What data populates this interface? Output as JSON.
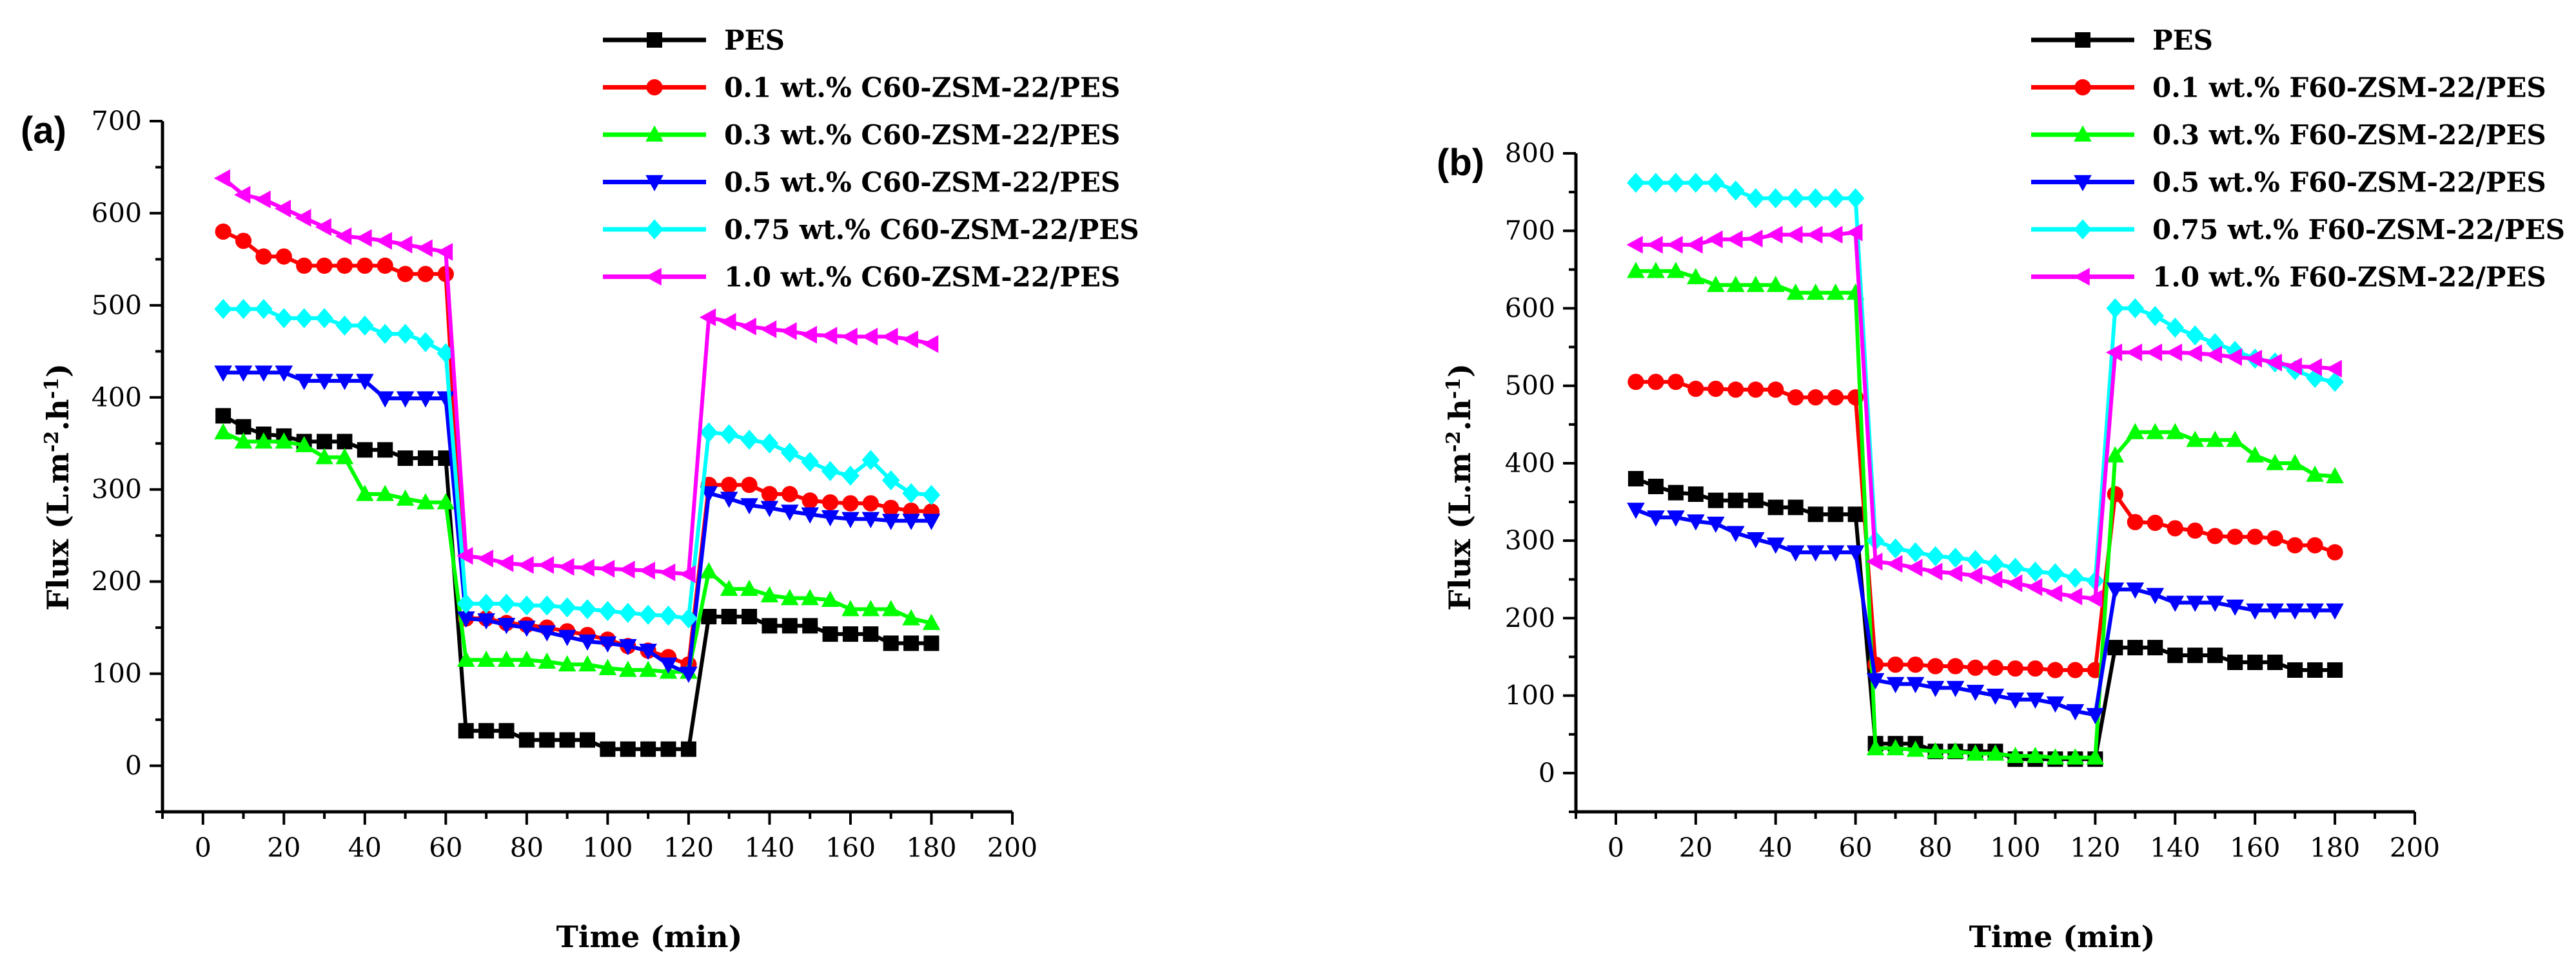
{
  "chart_data": [
    {
      "type": "line",
      "panel_label": "(a)",
      "xlabel": "Time (min)",
      "ylabel_main": "Flux (L.m",
      "ylabel_sup1": "-2",
      "ylabel_mid": ".h",
      "ylabel_sup2": "-1",
      "ylabel_end": ")",
      "xlim": [
        -10,
        200
      ],
      "ylim": [
        -50,
        700
      ],
      "xticks": [
        0,
        20,
        40,
        60,
        80,
        100,
        120,
        140,
        160,
        180,
        200
      ],
      "yticks": [
        0,
        100,
        200,
        300,
        400,
        500,
        600,
        700
      ],
      "x": [
        5,
        10,
        15,
        20,
        25,
        30,
        35,
        40,
        45,
        50,
        55,
        60,
        65,
        70,
        75,
        80,
        85,
        90,
        95,
        100,
        105,
        110,
        115,
        120,
        125,
        130,
        135,
        140,
        145,
        150,
        155,
        160,
        165,
        170,
        175,
        180
      ],
      "series": [
        {
          "name": "PES",
          "color": "#000000",
          "marker": "square",
          "values": [
            380,
            368,
            360,
            358,
            352,
            352,
            352,
            343,
            343,
            334,
            334,
            334,
            38,
            38,
            38,
            28,
            28,
            28,
            28,
            18,
            18,
            18,
            18,
            18,
            162,
            162,
            162,
            152,
            152,
            152,
            143,
            143,
            143,
            133,
            133,
            133
          ]
        },
        {
          "name": "0.1 wt.% C60-ZSM-22/PES",
          "color": "#ff0000",
          "marker": "circle",
          "values": [
            580,
            570,
            553,
            553,
            543,
            543,
            543,
            543,
            543,
            534,
            534,
            534,
            160,
            160,
            155,
            153,
            150,
            146,
            142,
            137,
            130,
            125,
            118,
            110,
            305,
            305,
            305,
            295,
            295,
            288,
            286,
            285,
            285,
            280,
            277,
            276
          ]
        },
        {
          "name": "0.3 wt.% C60-ZSM-22/PES",
          "color": "#00ff00",
          "marker": "triangle-up",
          "values": [
            362,
            352,
            352,
            352,
            348,
            335,
            335,
            295,
            295,
            290,
            286,
            286,
            115,
            115,
            115,
            115,
            113,
            110,
            110,
            106,
            104,
            104,
            102,
            102,
            211,
            192,
            192,
            185,
            182,
            182,
            180,
            170,
            170,
            170,
            160,
            155
          ]
        },
        {
          "name": "0.5 wt.% C60-ZSM-22/PES",
          "color": "#0000ff",
          "marker": "triangle-down",
          "values": [
            427,
            427,
            427,
            427,
            418,
            418,
            418,
            418,
            399,
            399,
            399,
            399,
            160,
            158,
            153,
            150,
            145,
            140,
            135,
            133,
            130,
            125,
            110,
            100,
            296,
            290,
            283,
            280,
            276,
            273,
            270,
            268,
            268,
            266,
            266,
            266
          ]
        },
        {
          "name": "0.75 wt.% C60-ZSM-22/PES",
          "color": "#00ffff",
          "marker": "diamond",
          "values": [
            496,
            496,
            496,
            486,
            486,
            486,
            478,
            478,
            469,
            469,
            460,
            448,
            176,
            176,
            176,
            174,
            174,
            172,
            170,
            168,
            166,
            164,
            163,
            160,
            362,
            360,
            354,
            350,
            340,
            330,
            320,
            315,
            332,
            310,
            296,
            294
          ]
        },
        {
          "name": "1.0 wt.% C60-ZSM-22/PES",
          "color": "#ff00ff",
          "marker": "triangle-left",
          "values": [
            638,
            620,
            615,
            605,
            595,
            585,
            575,
            573,
            570,
            566,
            562,
            558,
            228,
            225,
            220,
            218,
            218,
            216,
            215,
            214,
            213,
            212,
            210,
            208,
            487,
            482,
            477,
            474,
            472,
            468,
            467,
            466,
            466,
            466,
            463,
            458
          ]
        }
      ]
    },
    {
      "type": "line",
      "panel_label": "(b)",
      "xlabel": "Time (min)",
      "ylabel_main": "Flux (L.m",
      "ylabel_sup1": "-2",
      "ylabel_mid": ".h",
      "ylabel_sup2": "-1",
      "ylabel_end": ")",
      "xlim": [
        -10,
        200
      ],
      "ylim": [
        -50,
        800
      ],
      "xticks": [
        0,
        20,
        40,
        60,
        80,
        100,
        120,
        140,
        160,
        180,
        200
      ],
      "yticks": [
        0,
        100,
        200,
        300,
        400,
        500,
        600,
        700,
        800
      ],
      "x": [
        5,
        10,
        15,
        20,
        25,
        30,
        35,
        40,
        45,
        50,
        55,
        60,
        65,
        70,
        75,
        80,
        85,
        90,
        95,
        100,
        105,
        110,
        115,
        120,
        125,
        130,
        135,
        140,
        145,
        150,
        155,
        160,
        165,
        170,
        175,
        180
      ],
      "series": [
        {
          "name": "PES",
          "color": "#000000",
          "marker": "square",
          "values": [
            380,
            370,
            362,
            360,
            352,
            352,
            352,
            343,
            343,
            334,
            334,
            334,
            38,
            38,
            38,
            28,
            28,
            28,
            28,
            18,
            18,
            18,
            18,
            18,
            162,
            162,
            162,
            152,
            152,
            152,
            143,
            143,
            143,
            133,
            133,
            133
          ]
        },
        {
          "name": "0.1 wt.% F60-ZSM-22/PES",
          "color": "#ff0000",
          "marker": "circle",
          "values": [
            505,
            505,
            505,
            496,
            496,
            495,
            495,
            495,
            485,
            485,
            485,
            485,
            140,
            140,
            140,
            138,
            138,
            136,
            136,
            135,
            135,
            133,
            133,
            133,
            360,
            324,
            323,
            316,
            313,
            306,
            305,
            305,
            303,
            294,
            294,
            285
          ]
        },
        {
          "name": "0.3 wt.% F60-ZSM-22/PES",
          "color": "#00ff00",
          "marker": "triangle-up",
          "values": [
            648,
            648,
            648,
            640,
            630,
            630,
            630,
            630,
            620,
            620,
            620,
            620,
            32,
            32,
            30,
            28,
            28,
            25,
            25,
            22,
            22,
            20,
            20,
            20,
            410,
            440,
            440,
            440,
            430,
            430,
            430,
            410,
            400,
            400,
            385,
            383
          ]
        },
        {
          "name": "0.5 wt.% F60-ZSM-22/PES",
          "color": "#0000ff",
          "marker": "triangle-down",
          "values": [
            340,
            330,
            330,
            325,
            322,
            310,
            302,
            295,
            285,
            285,
            285,
            285,
            120,
            115,
            115,
            110,
            110,
            105,
            100,
            95,
            95,
            90,
            80,
            75,
            237,
            237,
            230,
            220,
            220,
            220,
            215,
            210,
            210,
            210,
            210,
            210
          ]
        },
        {
          "name": "0.75 wt.% F60-ZSM-22/PES",
          "color": "#00ffff",
          "marker": "diamond",
          "values": [
            762,
            762,
            762,
            762,
            762,
            752,
            742,
            742,
            742,
            742,
            742,
            742,
            300,
            290,
            285,
            280,
            278,
            275,
            270,
            265,
            260,
            258,
            252,
            248,
            600,
            600,
            590,
            575,
            565,
            555,
            545,
            535,
            530,
            520,
            510,
            505
          ]
        },
        {
          "name": "1.0 wt.% F60-ZSM-22/PES",
          "color": "#ff00ff",
          "marker": "triangle-left",
          "values": [
            682,
            682,
            682,
            682,
            689,
            689,
            690,
            695,
            695,
            695,
            695,
            698,
            273,
            270,
            265,
            260,
            258,
            255,
            250,
            245,
            240,
            232,
            228,
            225,
            543,
            543,
            543,
            543,
            542,
            540,
            537,
            535,
            530,
            525,
            524,
            522
          ]
        }
      ]
    }
  ]
}
